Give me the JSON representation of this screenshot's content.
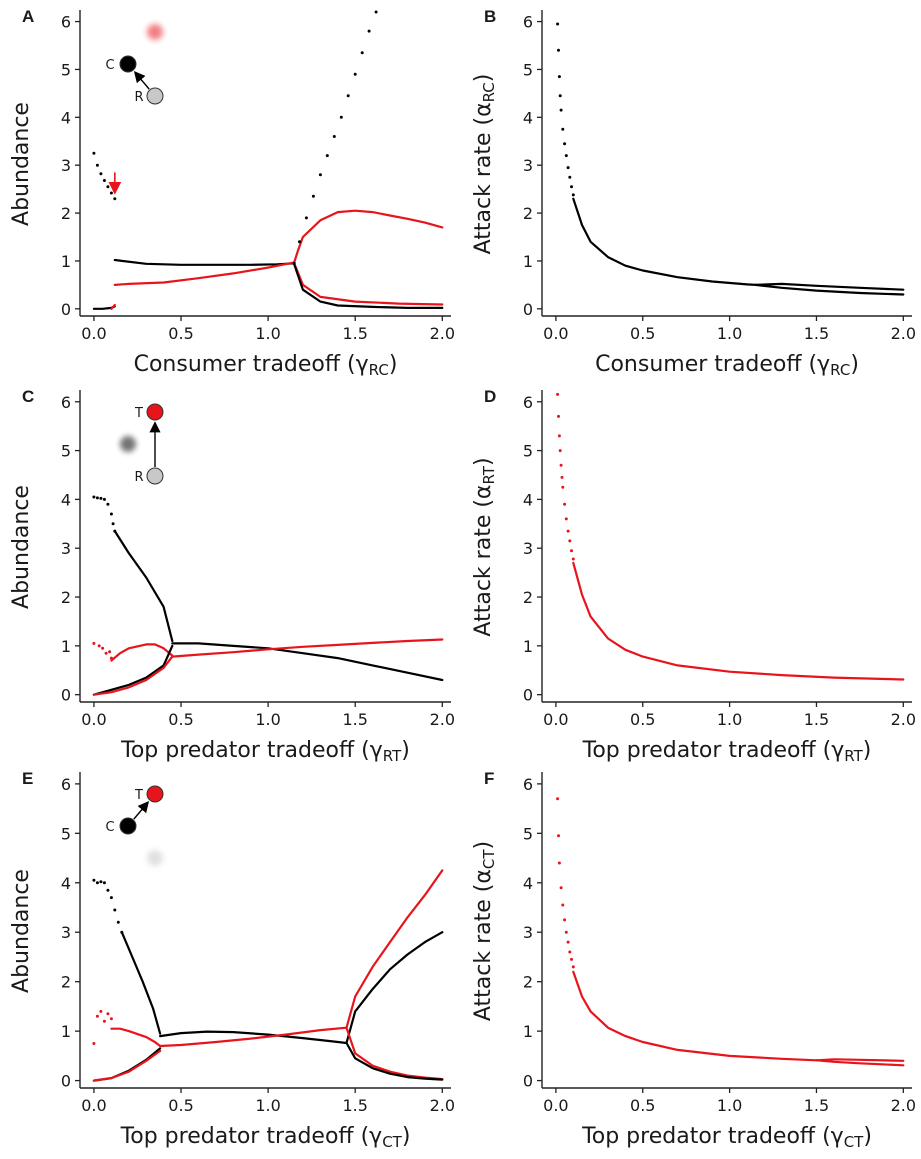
{
  "colors": {
    "consumer": "#000000",
    "top_predator": "#e8141c",
    "resource": "#c8c8c8"
  },
  "chart_data": [
    {
      "id": "A",
      "type": "line",
      "panel_letter": "A",
      "xlabel": "Consumer tradeoff (",
      "xlabel_sym": "γ",
      "xlabel_sub": "RC",
      "xlabel_end": ")",
      "ylabel": "Abundance",
      "ylabel_sym": "",
      "ylabel_sub": "",
      "ylabel_end": "",
      "xlim": [
        -0.08,
        2.05
      ],
      "ylim": [
        -0.15,
        6.2
      ],
      "xticks": [
        "0.0",
        "0.5",
        "1.0",
        "1.5",
        "2.0"
      ],
      "yticks": [
        "0",
        "1",
        "2",
        "3",
        "4",
        "5",
        "6"
      ],
      "inset": {
        "labels": [
          "C",
          "R"
        ],
        "active": "C-R"
      },
      "arrow_annotation": {
        "x": 0.12,
        "y_from": 2.85,
        "y_to": 2.45
      },
      "series": [
        {
          "color": "black",
          "style": "dots",
          "x": [
            0.0,
            0.02,
            0.04,
            0.06,
            0.08,
            0.1,
            0.12
          ],
          "y": [
            3.25,
            3.0,
            2.82,
            2.68,
            2.55,
            2.42,
            2.3
          ]
        },
        {
          "color": "black",
          "style": "line",
          "x": [
            0.0,
            0.05,
            0.1,
            0.12
          ],
          "y": [
            0.0,
            0.0,
            0.02,
            0.05
          ]
        },
        {
          "color": "red",
          "style": "line",
          "x": [
            0.1,
            0.12
          ],
          "y": [
            0.0,
            0.08
          ]
        },
        {
          "color": "black",
          "style": "line",
          "x": [
            0.12,
            0.3,
            0.5,
            0.7,
            0.9,
            1.05,
            1.15
          ],
          "y": [
            1.02,
            0.94,
            0.92,
            0.92,
            0.92,
            0.93,
            0.95
          ]
        },
        {
          "color": "red",
          "style": "line",
          "x": [
            0.12,
            0.2,
            0.4,
            0.6,
            0.8,
            1.0,
            1.15
          ],
          "y": [
            0.5,
            0.52,
            0.55,
            0.64,
            0.74,
            0.86,
            0.97
          ]
        },
        {
          "color": "red",
          "style": "line",
          "x": [
            1.15,
            1.17,
            1.2,
            1.3,
            1.4,
            1.5,
            1.6,
            1.7,
            1.8,
            1.9,
            2.0
          ],
          "y": [
            0.97,
            1.2,
            1.5,
            1.85,
            2.02,
            2.05,
            2.02,
            1.95,
            1.88,
            1.8,
            1.7
          ]
        },
        {
          "color": "red",
          "style": "line",
          "x": [
            1.15,
            1.2,
            1.3,
            1.5,
            1.75,
            2.0
          ],
          "y": [
            0.95,
            0.5,
            0.25,
            0.15,
            0.11,
            0.09
          ]
        },
        {
          "color": "black",
          "style": "line",
          "x": [
            1.15,
            1.2,
            1.3,
            1.4,
            1.6,
            1.8,
            2.0
          ],
          "y": [
            0.93,
            0.4,
            0.15,
            0.07,
            0.04,
            0.02,
            0.02
          ]
        },
        {
          "color": "black",
          "style": "dots",
          "x": [
            1.15,
            1.18,
            1.22,
            1.26,
            1.3,
            1.34,
            1.38,
            1.42,
            1.46,
            1.5,
            1.54,
            1.58,
            1.62
          ],
          "y": [
            0.95,
            1.4,
            1.9,
            2.35,
            2.8,
            3.2,
            3.6,
            4.0,
            4.45,
            4.9,
            5.35,
            5.8,
            6.2
          ]
        }
      ]
    },
    {
      "id": "B",
      "type": "scatter",
      "panel_letter": "B",
      "xlabel": "Consumer tradeoff (",
      "xlabel_sym": "γ",
      "xlabel_sub": "RC",
      "xlabel_end": ")",
      "ylabel": "Attack rate (",
      "ylabel_sym": "α",
      "ylabel_sub": "RC",
      "ylabel_end": ")",
      "xlim": [
        -0.08,
        2.05
      ],
      "ylim": [
        -0.15,
        6.2
      ],
      "xticks": [
        "0.0",
        "0.5",
        "1.0",
        "1.5",
        "2.0"
      ],
      "yticks": [
        "0",
        "1",
        "2",
        "3",
        "4",
        "5",
        "6"
      ],
      "series": [
        {
          "color": "black",
          "style": "dots",
          "x": [
            0.01,
            0.015,
            0.02,
            0.025,
            0.03,
            0.04,
            0.05,
            0.06,
            0.07,
            0.08,
            0.09,
            0.1
          ],
          "y": [
            5.95,
            5.4,
            4.85,
            4.45,
            4.15,
            3.75,
            3.45,
            3.2,
            2.95,
            2.75,
            2.55,
            2.38
          ]
        },
        {
          "color": "black",
          "style": "line",
          "x": [
            0.1,
            0.15,
            0.2,
            0.3,
            0.4,
            0.5,
            0.7,
            0.9,
            1.1,
            1.15
          ],
          "y": [
            2.3,
            1.75,
            1.4,
            1.08,
            0.9,
            0.8,
            0.66,
            0.57,
            0.51,
            0.5
          ]
        },
        {
          "color": "black",
          "style": "line",
          "x": [
            1.15,
            1.3,
            1.5,
            1.75,
            2.0
          ],
          "y": [
            0.5,
            0.52,
            0.48,
            0.44,
            0.4
          ]
        },
        {
          "color": "black",
          "style": "line",
          "x": [
            1.15,
            1.3,
            1.5,
            1.75,
            2.0
          ],
          "y": [
            0.5,
            0.44,
            0.38,
            0.33,
            0.3
          ]
        }
      ]
    },
    {
      "id": "C",
      "type": "line",
      "panel_letter": "C",
      "xlabel": "Top predator tradeoff (",
      "xlabel_sym": "γ",
      "xlabel_sub": "RT",
      "xlabel_end": ")",
      "ylabel": "Abundance",
      "ylabel_sym": "",
      "ylabel_sub": "",
      "ylabel_end": "",
      "xlim": [
        -0.08,
        2.05
      ],
      "ylim": [
        -0.15,
        6.2
      ],
      "xticks": [
        "0.0",
        "0.5",
        "1.0",
        "1.5",
        "2.0"
      ],
      "yticks": [
        "0",
        "1",
        "2",
        "3",
        "4",
        "5",
        "6"
      ],
      "inset": {
        "labels": [
          "T",
          "R"
        ],
        "active": "T-R"
      },
      "series": [
        {
          "color": "black",
          "style": "dots",
          "x": [
            0.0,
            0.02,
            0.04,
            0.06,
            0.08,
            0.1,
            0.11,
            0.12
          ],
          "y": [
            4.05,
            4.03,
            4.02,
            4.0,
            3.9,
            3.7,
            3.5,
            3.35
          ]
        },
        {
          "color": "black",
          "style": "line",
          "x": [
            0.12,
            0.2,
            0.3,
            0.4,
            0.45
          ],
          "y": [
            3.35,
            2.9,
            2.4,
            1.8,
            1.1
          ]
        },
        {
          "color": "red",
          "style": "dots",
          "x": [
            0.0,
            0.03,
            0.05,
            0.07,
            0.09,
            0.1
          ],
          "y": [
            1.05,
            1.0,
            0.95,
            0.85,
            0.88,
            0.75
          ]
        },
        {
          "color": "red",
          "style": "line",
          "x": [
            0.1,
            0.15,
            0.2,
            0.3,
            0.35,
            0.4,
            0.45
          ],
          "y": [
            0.7,
            0.85,
            0.95,
            1.03,
            1.03,
            0.95,
            0.8
          ]
        },
        {
          "color": "black",
          "style": "line",
          "x": [
            0.0,
            0.1,
            0.2,
            0.3,
            0.4,
            0.45
          ],
          "y": [
            0.0,
            0.1,
            0.2,
            0.35,
            0.6,
            1.0
          ]
        },
        {
          "color": "red",
          "style": "line",
          "x": [
            0.0,
            0.1,
            0.2,
            0.3,
            0.4,
            0.45
          ],
          "y": [
            0.0,
            0.05,
            0.15,
            0.3,
            0.55,
            0.78
          ]
        },
        {
          "color": "black",
          "style": "line",
          "x": [
            0.45,
            0.6,
            0.8,
            1.0,
            1.2,
            1.4,
            1.6,
            1.8,
            2.0
          ],
          "y": [
            1.05,
            1.05,
            1.0,
            0.95,
            0.85,
            0.75,
            0.6,
            0.45,
            0.3
          ]
        },
        {
          "color": "red",
          "style": "line",
          "x": [
            0.45,
            0.6,
            0.8,
            1.0,
            1.2,
            1.4,
            1.6,
            1.8,
            2.0
          ],
          "y": [
            0.78,
            0.82,
            0.87,
            0.93,
            0.98,
            1.02,
            1.06,
            1.1,
            1.13
          ]
        }
      ]
    },
    {
      "id": "D",
      "type": "scatter",
      "panel_letter": "D",
      "xlabel": "Top predator tradeoff (",
      "xlabel_sym": "γ",
      "xlabel_sub": "RT",
      "xlabel_end": ")",
      "ylabel": "Attack rate (",
      "ylabel_sym": "α",
      "ylabel_sub": "RT",
      "ylabel_end": ")",
      "xlim": [
        -0.08,
        2.05
      ],
      "ylim": [
        -0.15,
        6.2
      ],
      "xticks": [
        "0.0",
        "0.5",
        "1.0",
        "1.5",
        "2.0"
      ],
      "yticks": [
        "0",
        "1",
        "2",
        "3",
        "4",
        "5",
        "6"
      ],
      "series": [
        {
          "color": "red",
          "style": "dots",
          "x": [
            0.01,
            0.015,
            0.02,
            0.025,
            0.03,
            0.035,
            0.04,
            0.05,
            0.06,
            0.07,
            0.08,
            0.09,
            0.1
          ],
          "y": [
            6.15,
            5.7,
            5.3,
            5.0,
            4.7,
            4.45,
            4.25,
            3.9,
            3.6,
            3.35,
            3.15,
            2.95,
            2.78
          ]
        },
        {
          "color": "red",
          "style": "line",
          "x": [
            0.1,
            0.15,
            0.2,
            0.3,
            0.4,
            0.5,
            0.7,
            1.0,
            1.3,
            1.6,
            2.0
          ],
          "y": [
            2.7,
            2.05,
            1.6,
            1.15,
            0.92,
            0.78,
            0.6,
            0.47,
            0.4,
            0.35,
            0.31
          ]
        }
      ]
    },
    {
      "id": "E",
      "type": "line",
      "panel_letter": "E",
      "xlabel": "Top predator tradeoff (",
      "xlabel_sym": "γ",
      "xlabel_sub": "CT",
      "xlabel_end": ")",
      "ylabel": "Abundance",
      "ylabel_sym": "",
      "ylabel_sub": "",
      "ylabel_end": "",
      "xlim": [
        -0.08,
        2.05
      ],
      "ylim": [
        -0.15,
        6.2
      ],
      "xticks": [
        "0.0",
        "0.5",
        "1.0",
        "1.5",
        "2.0"
      ],
      "yticks": [
        "0",
        "1",
        "2",
        "3",
        "4",
        "5",
        "6"
      ],
      "inset": {
        "labels": [
          "T",
          "C"
        ],
        "active": "C-T"
      },
      "series": [
        {
          "color": "black",
          "style": "dots",
          "x": [
            0.0,
            0.02,
            0.04,
            0.06,
            0.08,
            0.1,
            0.12,
            0.14,
            0.16
          ],
          "y": [
            4.05,
            4.0,
            4.02,
            4.0,
            3.85,
            3.7,
            3.45,
            3.2,
            3.0
          ]
        },
        {
          "color": "black",
          "style": "line",
          "x": [
            0.16,
            0.22,
            0.28,
            0.34,
            0.38
          ],
          "y": [
            3.0,
            2.5,
            2.0,
            1.45,
            0.95
          ]
        },
        {
          "color": "red",
          "style": "dots",
          "x": [
            0.0,
            0.02,
            0.04,
            0.06,
            0.08,
            0.1
          ],
          "y": [
            0.75,
            1.3,
            1.4,
            1.2,
            1.35,
            1.25
          ]
        },
        {
          "color": "red",
          "style": "line",
          "x": [
            0.1,
            0.15,
            0.2,
            0.3,
            0.35,
            0.38
          ],
          "y": [
            1.05,
            1.05,
            1.0,
            0.88,
            0.78,
            0.7
          ]
        },
        {
          "color": "black",
          "style": "line",
          "x": [
            0.0,
            0.1,
            0.2,
            0.3,
            0.38
          ],
          "y": [
            0.0,
            0.05,
            0.2,
            0.42,
            0.65
          ]
        },
        {
          "color": "red",
          "style": "line",
          "x": [
            0.0,
            0.1,
            0.2,
            0.3,
            0.38
          ],
          "y": [
            0.0,
            0.05,
            0.18,
            0.4,
            0.6
          ]
        },
        {
          "color": "black",
          "style": "line",
          "x": [
            0.38,
            0.5,
            0.65,
            0.8,
            1.0,
            1.2,
            1.35,
            1.45
          ],
          "y": [
            0.9,
            0.96,
            0.99,
            0.98,
            0.93,
            0.86,
            0.8,
            0.76
          ]
        },
        {
          "color": "red",
          "style": "line",
          "x": [
            0.38,
            0.5,
            0.7,
            0.9,
            1.1,
            1.3,
            1.45
          ],
          "y": [
            0.7,
            0.72,
            0.78,
            0.85,
            0.93,
            1.02,
            1.07
          ]
        },
        {
          "color": "red",
          "style": "line",
          "x": [
            1.45,
            1.5,
            1.6,
            1.7,
            1.8,
            1.9,
            2.0
          ],
          "y": [
            1.07,
            1.7,
            2.3,
            2.8,
            3.3,
            3.75,
            4.25
          ]
        },
        {
          "color": "black",
          "style": "line",
          "x": [
            1.45,
            1.5,
            1.6,
            1.7,
            1.8,
            1.9,
            2.0
          ],
          "y": [
            0.76,
            1.4,
            1.85,
            2.25,
            2.55,
            2.8,
            3.0
          ]
        },
        {
          "color": "red",
          "style": "line",
          "x": [
            1.45,
            1.5,
            1.6,
            1.7,
            1.8,
            1.9,
            2.0
          ],
          "y": [
            1.07,
            0.55,
            0.3,
            0.18,
            0.1,
            0.06,
            0.03
          ]
        },
        {
          "color": "black",
          "style": "line",
          "x": [
            1.45,
            1.5,
            1.6,
            1.7,
            1.8,
            1.9,
            2.0
          ],
          "y": [
            0.76,
            0.45,
            0.25,
            0.14,
            0.07,
            0.04,
            0.02
          ]
        }
      ]
    },
    {
      "id": "F",
      "type": "scatter",
      "panel_letter": "F",
      "xlabel": "Top predator tradeoff (",
      "xlabel_sym": "γ",
      "xlabel_sub": "CT",
      "xlabel_end": ")",
      "ylabel": "Attack rate (",
      "ylabel_sym": "α",
      "ylabel_sub": "CT",
      "ylabel_end": ")",
      "xlim": [
        -0.08,
        2.05
      ],
      "ylim": [
        -0.15,
        6.2
      ],
      "xticks": [
        "0.0",
        "0.5",
        "1.0",
        "1.5",
        "2.0"
      ],
      "yticks": [
        "0",
        "1",
        "2",
        "3",
        "4",
        "5",
        "6"
      ],
      "series": [
        {
          "color": "red",
          "style": "dots",
          "x": [
            0.01,
            0.015,
            0.02,
            0.03,
            0.04,
            0.05,
            0.06,
            0.07,
            0.08,
            0.09,
            0.1
          ],
          "y": [
            5.7,
            4.95,
            4.4,
            3.9,
            3.55,
            3.25,
            3.0,
            2.8,
            2.6,
            2.45,
            2.3
          ]
        },
        {
          "color": "red",
          "style": "line",
          "x": [
            0.1,
            0.15,
            0.2,
            0.3,
            0.4,
            0.5,
            0.7,
            1.0,
            1.3,
            1.5
          ],
          "y": [
            2.2,
            1.7,
            1.4,
            1.07,
            0.9,
            0.78,
            0.62,
            0.5,
            0.44,
            0.41
          ]
        },
        {
          "color": "red",
          "style": "line",
          "x": [
            1.5,
            1.6,
            1.75,
            2.0
          ],
          "y": [
            0.41,
            0.43,
            0.42,
            0.4
          ]
        },
        {
          "color": "red",
          "style": "line",
          "x": [
            1.5,
            1.6,
            1.75,
            2.0
          ],
          "y": [
            0.41,
            0.38,
            0.35,
            0.31
          ]
        }
      ]
    }
  ]
}
